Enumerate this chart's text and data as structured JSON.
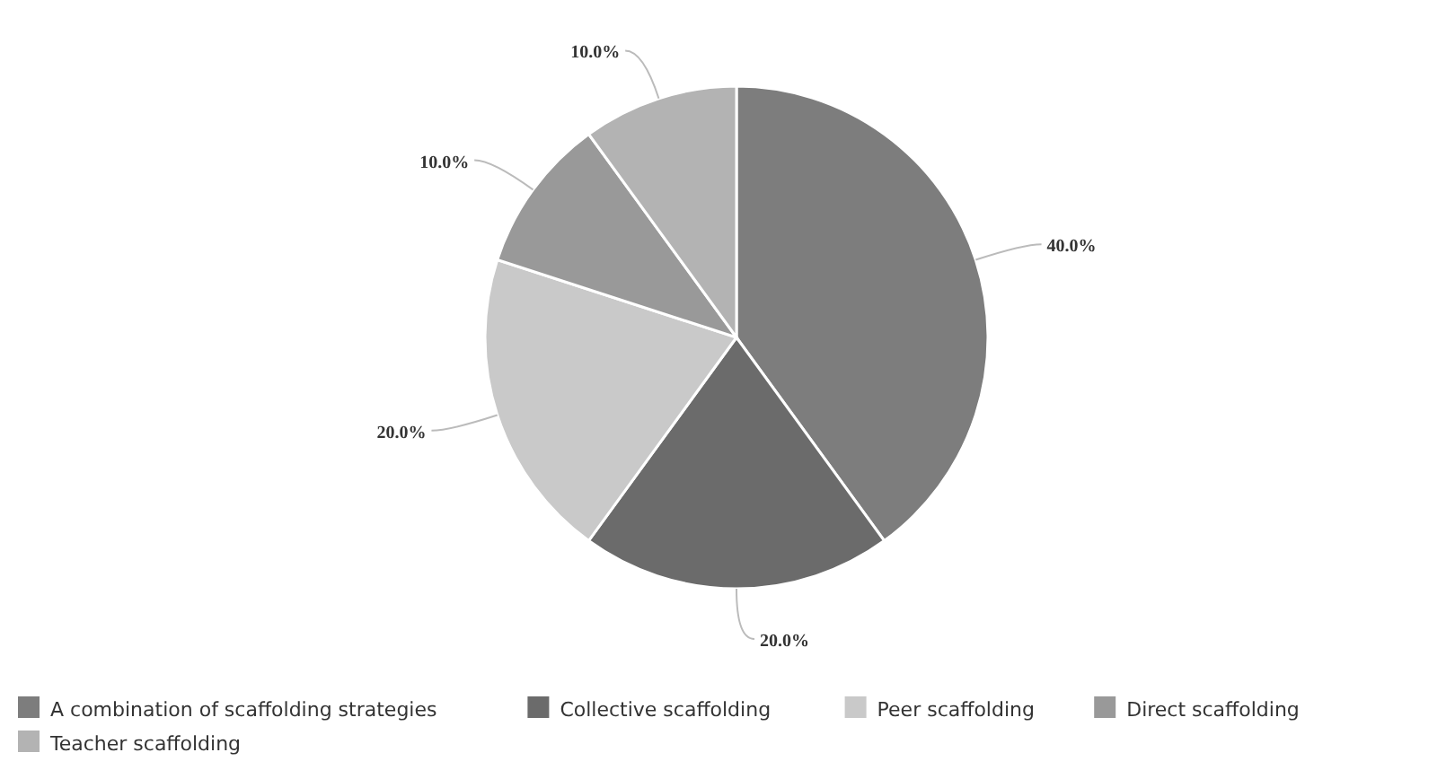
{
  "chart_data": {
    "type": "pie",
    "categories": [
      "A combination of scaffolding strategies",
      "Collective scaffolding",
      "Peer scaffolding",
      "Direct scaffolding",
      "Teacher scaffolding"
    ],
    "values": [
      40,
      20,
      20,
      10,
      10
    ],
    "colors": [
      "#7d7d7d",
      "#6b6b6b",
      "#c9c9c9",
      "#999999",
      "#b3b3b3"
    ],
    "value_labels": [
      "40.0%",
      "20.0%",
      "20.0%",
      "10.0%",
      "10.0%"
    ],
    "legend": "bottom"
  }
}
